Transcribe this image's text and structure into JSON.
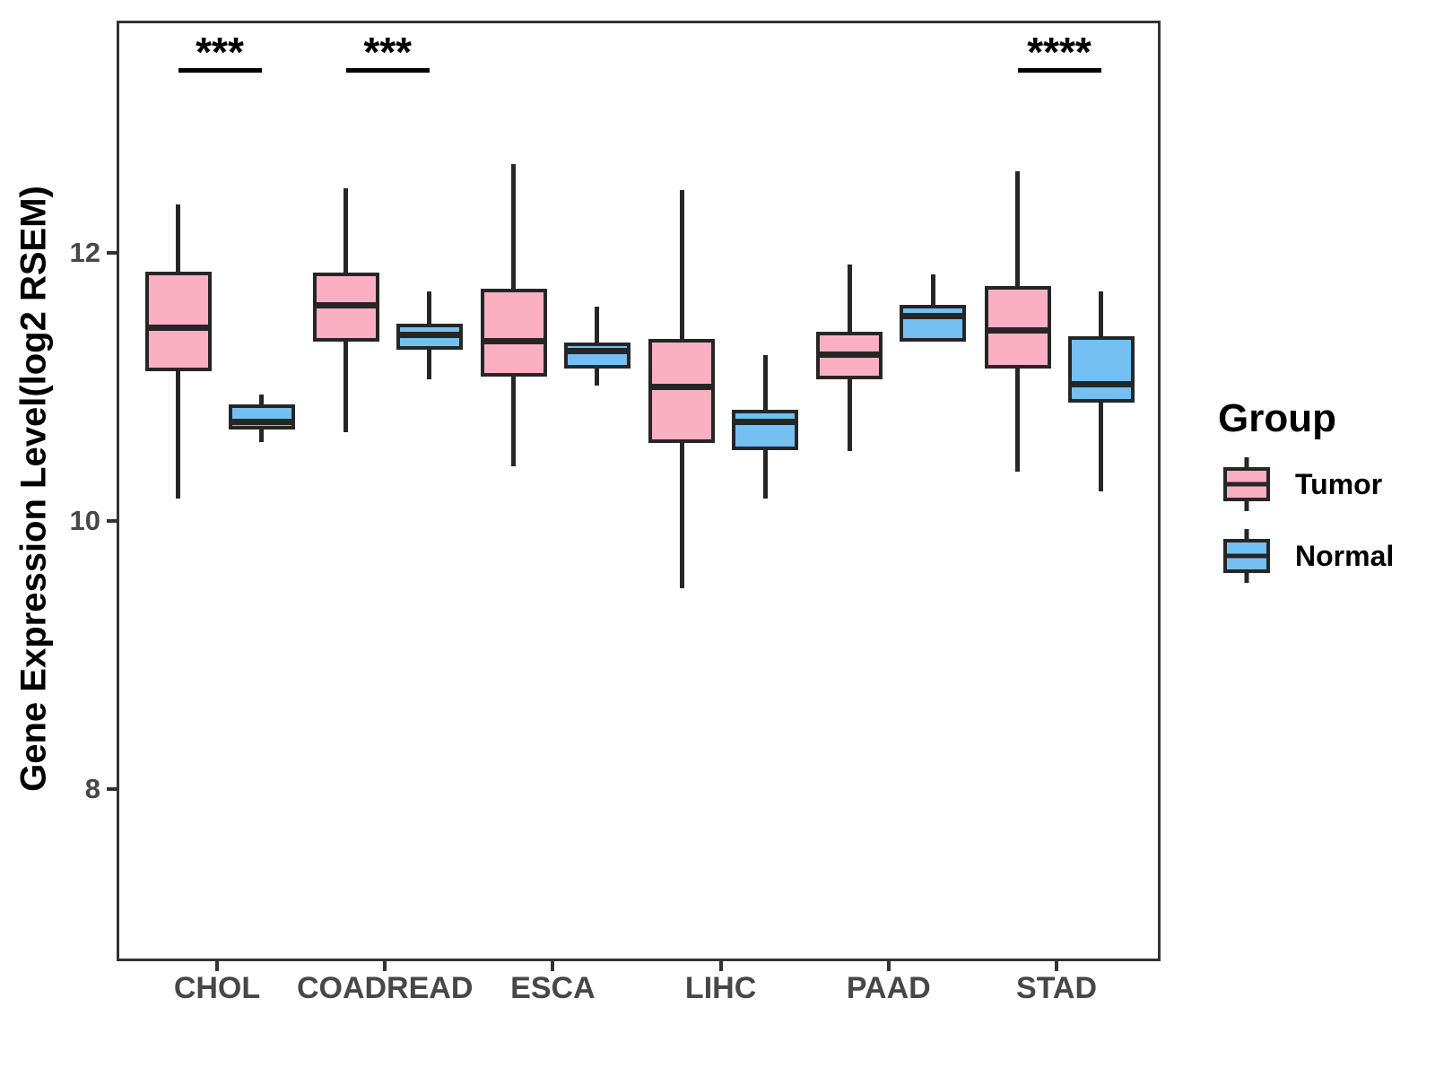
{
  "y_axis": {
    "label": "Gene Expression Level(log2 RSEM)",
    "ticks": [
      {
        "label": "8",
        "value": 8
      },
      {
        "label": "10",
        "value": 10
      },
      {
        "label": "12",
        "value": 12
      }
    ]
  },
  "legend": {
    "title": "Group",
    "items": [
      {
        "label": "Tumor",
        "color": "#FBAFC2"
      },
      {
        "label": "Normal",
        "color": "#74C0F2"
      }
    ]
  },
  "chart_data": {
    "type": "boxplot",
    "title": "",
    "xlabel": "",
    "ylabel": "Gene Expression Level(log2 RSEM)",
    "categories": [
      "CHOL",
      "COADREAD",
      "ESCA",
      "LIHC",
      "PAAD",
      "STAD"
    ],
    "axis_ticks_y": [
      8,
      10,
      12
    ],
    "legend_position": "right",
    "grid": false,
    "series": [
      {
        "name": "Tumor",
        "color": "#FBAFC2",
        "boxes": [
          {
            "category": "CHOL",
            "whisker_low": 10.19,
            "q1": 11.14,
            "median": 11.46,
            "q3": 11.88,
            "whisker_high": 12.38
          },
          {
            "category": "COADREAD",
            "whisker_low": 10.68,
            "q1": 11.36,
            "median": 11.63,
            "q3": 11.87,
            "whisker_high": 12.5
          },
          {
            "category": "ESCA",
            "whisker_low": 10.43,
            "q1": 11.1,
            "median": 11.36,
            "q3": 11.75,
            "whisker_high": 12.68
          },
          {
            "category": "LIHC",
            "whisker_low": 9.52,
            "q1": 10.6,
            "median": 11.02,
            "q3": 11.38,
            "whisker_high": 12.49
          },
          {
            "category": "PAAD",
            "whisker_low": 10.54,
            "q1": 11.08,
            "median": 11.26,
            "q3": 11.43,
            "whisker_high": 11.93
          },
          {
            "category": "STAD",
            "whisker_low": 10.39,
            "q1": 11.16,
            "median": 11.44,
            "q3": 11.77,
            "whisker_high": 12.63
          }
        ]
      },
      {
        "name": "Normal",
        "color": "#74C0F2",
        "boxes": [
          {
            "category": "CHOL",
            "whisker_low": 10.61,
            "q1": 10.7,
            "median": 10.76,
            "q3": 10.89,
            "whisker_high": 10.96
          },
          {
            "category": "COADREAD",
            "whisker_low": 11.08,
            "q1": 11.3,
            "median": 11.41,
            "q3": 11.49,
            "whisker_high": 11.73
          },
          {
            "category": "ESCA",
            "whisker_low": 11.03,
            "q1": 11.16,
            "median": 11.29,
            "q3": 11.35,
            "whisker_high": 11.62
          },
          {
            "category": "LIHC",
            "whisker_low": 10.19,
            "q1": 10.55,
            "median": 10.76,
            "q3": 10.85,
            "whisker_high": 11.26
          },
          {
            "category": "PAAD",
            "whisker_low": 11.36,
            "q1": 11.36,
            "median": 11.55,
            "q3": 11.63,
            "whisker_high": 11.86
          },
          {
            "category": "STAD",
            "whisker_low": 10.24,
            "q1": 10.9,
            "median": 11.04,
            "q3": 11.4,
            "whisker_high": 11.73
          }
        ]
      }
    ],
    "significance": [
      {
        "category": "CHOL",
        "label": "***"
      },
      {
        "category": "COADREAD",
        "label": "***"
      },
      {
        "category": "STAD",
        "label": "****"
      }
    ]
  }
}
